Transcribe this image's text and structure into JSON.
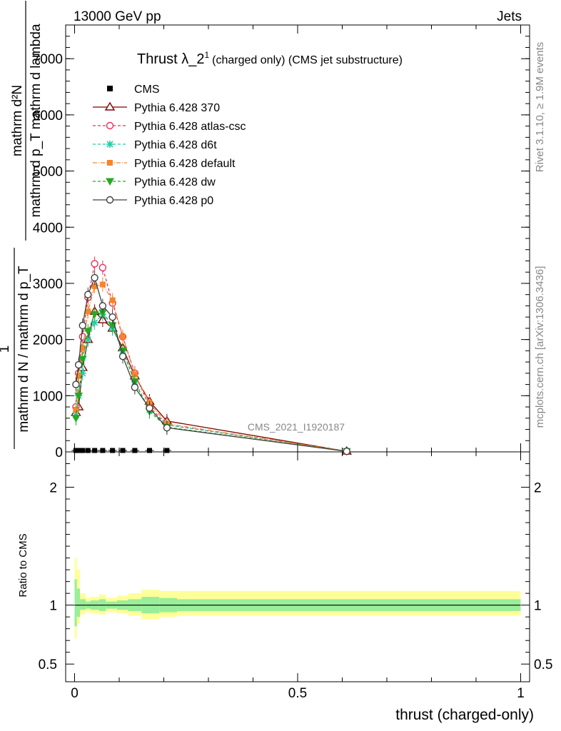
{
  "header": {
    "energy_label": "13000 GeV pp",
    "process_label": "Jets",
    "title_main": "Thrust λ_2",
    "title_sup": "1",
    "title_small": "(charged only) (CMS jet substructure)",
    "rivet_label": "Rivet 3.1.10, ≥ 1.9M events",
    "mcplots_label": "mcplots.cern.ch [arXiv:1306.3436]",
    "analysis_label": "CMS_2021_I1920187"
  },
  "chart_data": {
    "type": "line",
    "xlabel": "thrust (charged-only)",
    "ylabel_main_numerator": "mathrm d²N",
    "ylabel_main_denominator": "mathrm d p_T mathrm d lambda",
    "ylabel_prefix_numerator": "1",
    "ylabel_prefix_denominator": "mathrm d N / mathrm d p_T",
    "ylabel_ratio": "Ratio to CMS",
    "xlim": [
      -0.02,
      1.02
    ],
    "ylim": [
      0,
      7600
    ],
    "ratio_ylim": [
      0.35,
      2.3
    ],
    "x_ticks": [
      {
        "v": 0,
        "label": "0"
      },
      {
        "v": 0.5,
        "label": "0.5"
      },
      {
        "v": 1,
        "label": "1"
      }
    ],
    "y_ticks": [
      {
        "v": 0,
        "label": "0"
      },
      {
        "v": 1000,
        "label": "1000"
      },
      {
        "v": 2000,
        "label": "2000"
      },
      {
        "v": 3000,
        "label": "3000"
      },
      {
        "v": 4000,
        "label": "4000"
      },
      {
        "v": 5000,
        "label": "5000"
      },
      {
        "v": 6000,
        "label": "6000"
      },
      {
        "v": 7000,
        "label": "7000"
      }
    ],
    "ratio_ticks": [
      {
        "v": 0.5,
        "label": "0.5"
      },
      {
        "v": 1,
        "label": "1"
      },
      {
        "v": 2,
        "label": "2"
      }
    ],
    "x": [
      0.003,
      0.009,
      0.018,
      0.03,
      0.045,
      0.063,
      0.085,
      0.108,
      0.135,
      0.168,
      0.207,
      0.61
    ],
    "cms": {
      "name": "CMS",
      "values": [
        25,
        25,
        25,
        25,
        25,
        25,
        25,
        25,
        25,
        25,
        25,
        null
      ]
    },
    "ratio_band": {
      "edges": [
        0,
        0.005,
        0.012,
        0.025,
        0.036,
        0.055,
        0.07,
        0.095,
        0.12,
        0.15,
        0.19,
        0.23,
        1.0
      ],
      "yellow": [
        [
          0.72,
          1.4
        ],
        [
          0.84,
          1.3
        ],
        [
          0.92,
          1.1
        ],
        [
          0.94,
          1.06
        ],
        [
          0.93,
          1.07
        ],
        [
          0.92,
          1.09
        ],
        [
          0.94,
          1.06
        ],
        [
          0.93,
          1.08
        ],
        [
          0.91,
          1.1
        ],
        [
          0.88,
          1.13
        ],
        [
          0.9,
          1.12
        ],
        [
          0.91,
          1.12
        ]
      ],
      "green": [
        [
          0.82,
          1.22
        ],
        [
          0.9,
          1.14
        ],
        [
          0.96,
          1.05
        ],
        [
          0.97,
          1.03
        ],
        [
          0.96,
          1.04
        ],
        [
          0.95,
          1.05
        ],
        [
          0.97,
          1.03
        ],
        [
          0.96,
          1.04
        ],
        [
          0.95,
          1.05
        ],
        [
          0.93,
          1.07
        ],
        [
          0.94,
          1.06
        ],
        [
          0.95,
          1.05
        ]
      ]
    },
    "series": [
      {
        "name": "Pythia 6.428 370",
        "color": "#800000",
        "dash": "",
        "marker": "triangle-open",
        "values": [
          700,
          800,
          1500,
          2000,
          2500,
          2350,
          2200,
          1850,
          1350,
          900,
          550,
          10
        ]
      },
      {
        "name": "Pythia 6.428 atlas-csc",
        "color": "#e6325a",
        "dash": "4,3",
        "marker": "circle-open",
        "values": [
          800,
          1400,
          2050,
          2750,
          3350,
          3280,
          2650,
          2050,
          1400,
          800,
          480,
          10
        ]
      },
      {
        "name": "Pythia 6.428 d6t",
        "color": "#22ccaa",
        "dash": "4,3",
        "marker": "star",
        "values": [
          650,
          1000,
          1400,
          2000,
          2300,
          2450,
          2200,
          1800,
          1250,
          750,
          480,
          10
        ]
      },
      {
        "name": "Pythia 6.428 default",
        "color": "#f7842a",
        "dash": "6,2,1,2",
        "marker": "square",
        "values": [
          750,
          1350,
          1850,
          2500,
          2950,
          2980,
          2700,
          2050,
          1380,
          870,
          500,
          10
        ]
      },
      {
        "name": "Pythia 6.428 dw",
        "color": "#22aa22",
        "dash": "4,3",
        "marker": "triangle-down",
        "values": [
          600,
          1000,
          1650,
          2150,
          2450,
          2480,
          2250,
          1800,
          1250,
          720,
          440,
          10
        ]
      },
      {
        "name": "Pythia 6.428 p0",
        "color": "#404040",
        "dash": "",
        "marker": "circle-open",
        "values": [
          1200,
          1550,
          2250,
          2800,
          3100,
          2600,
          2400,
          1700,
          1150,
          780,
          430,
          10
        ]
      }
    ],
    "legend_position": "top-left"
  }
}
